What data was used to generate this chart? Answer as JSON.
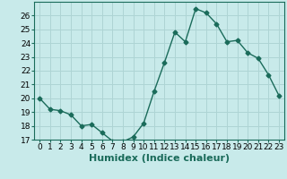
{
  "x": [
    0,
    1,
    2,
    3,
    4,
    5,
    6,
    7,
    8,
    9,
    10,
    11,
    12,
    13,
    14,
    15,
    16,
    17,
    18,
    19,
    20,
    21,
    22,
    23
  ],
  "y": [
    20.0,
    19.2,
    19.1,
    18.8,
    18.0,
    18.1,
    17.5,
    16.9,
    16.85,
    17.2,
    18.2,
    20.5,
    22.6,
    24.8,
    24.1,
    26.5,
    26.2,
    25.4,
    24.1,
    24.2,
    23.3,
    22.9,
    21.7,
    20.2
  ],
  "xlabel": "Humidex (Indice chaleur)",
  "ylim": [
    17,
    27
  ],
  "xlim": [
    -0.5,
    23.5
  ],
  "yticks": [
    17,
    18,
    19,
    20,
    21,
    22,
    23,
    24,
    25,
    26
  ],
  "xticks": [
    0,
    1,
    2,
    3,
    4,
    5,
    6,
    7,
    8,
    9,
    10,
    11,
    12,
    13,
    14,
    15,
    16,
    17,
    18,
    19,
    20,
    21,
    22,
    23
  ],
  "line_color": "#1a6b5a",
  "marker": "D",
  "marker_size": 2.5,
  "bg_color": "#c8eaea",
  "grid_color": "#aed4d4",
  "label_fontsize": 8,
  "tick_fontsize": 6.5
}
